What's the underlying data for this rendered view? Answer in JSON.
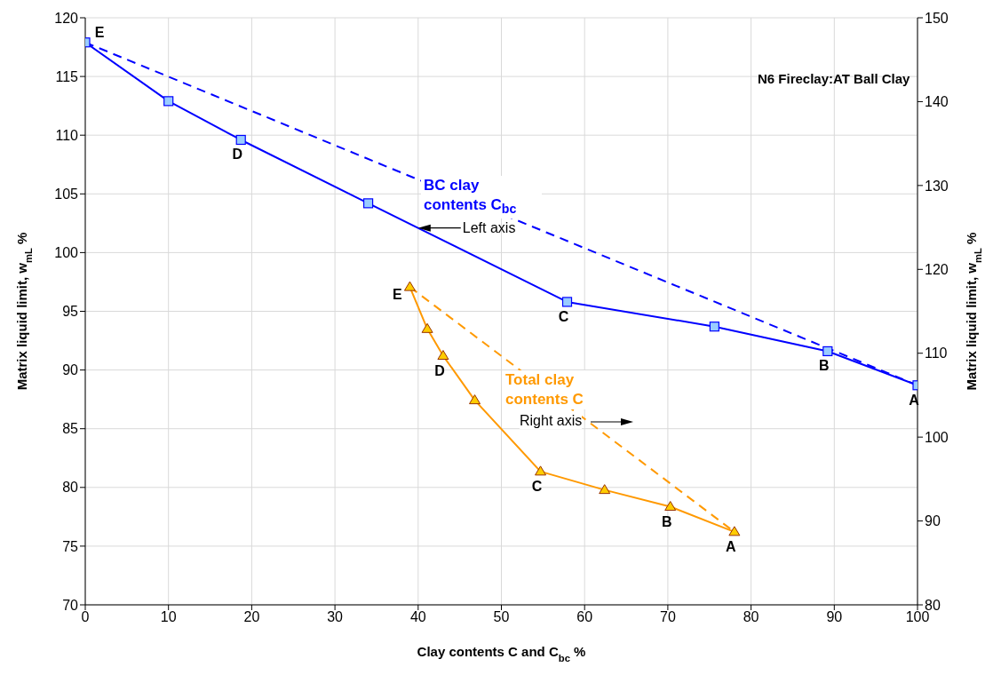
{
  "chart_data": {
    "type": "line",
    "xlabel": "Clay contents C and C$_{bc}$ %",
    "ylabel": "Matrix liquid limit, w$_{mL}$   %",
    "y2label": "Matrix liquid limit, w$_{mL}$ %",
    "xlim": [
      0,
      100
    ],
    "xticks": [
      0,
      10,
      20,
      30,
      40,
      50,
      60,
      70,
      80,
      90,
      100
    ],
    "ylim": [
      70,
      120
    ],
    "yticks": [
      70,
      75,
      80,
      85,
      90,
      95,
      100,
      105,
      110,
      115,
      120
    ],
    "y2lim": [
      80,
      150
    ],
    "y2ticks": [
      80,
      90,
      100,
      110,
      120,
      130,
      140,
      150
    ],
    "grid": true,
    "series": [
      {
        "name": "BC clay contents C$_{bc}$",
        "color": "#0000ff",
        "marker": "square",
        "line_style": "solid",
        "x": [
          0,
          10,
          18.7,
          34,
          57.9,
          75.6,
          89.2,
          100
        ],
        "values": [
          117.9,
          112.9,
          109.6,
          104.2,
          95.8,
          93.7,
          91.6,
          88.7
        ],
        "value_labels": [
          "E",
          null,
          "D",
          null,
          "C",
          null,
          "B",
          "A"
        ]
      },
      {
        "color": "#0000ff",
        "marker": "none",
        "line_style": "dashed",
        "x": [
          0,
          100
        ],
        "values": [
          117.9,
          88.7
        ]
      },
      {
        "name": "Total clay contents C",
        "color": "#ff9900",
        "marker": "triangle",
        "line_style": "solid",
        "axis": "y2",
        "x": [
          39,
          41.1,
          43,
          46.8,
          54.7,
          62.4,
          70.3,
          78
        ],
        "values": [
          117.9,
          112.9,
          109.7,
          104.4,
          95.9,
          93.7,
          91.7,
          88.7
        ],
        "value_labels": [
          "E",
          null,
          "D",
          null,
          "C",
          null,
          "B",
          "A"
        ]
      },
      {
        "color": "#ff9900",
        "marker": "none",
        "line_style": "dashed",
        "axis": "y2",
        "x": [
          39,
          78
        ],
        "values": [
          117.9,
          88.7
        ]
      }
    ],
    "annotations": [
      "N6 Fireclay:AT Ball Clay",
      {
        "text": "Left axis",
        "x": 40,
        "y": 102.1
      },
      "Right axis"
    ]
  }
}
